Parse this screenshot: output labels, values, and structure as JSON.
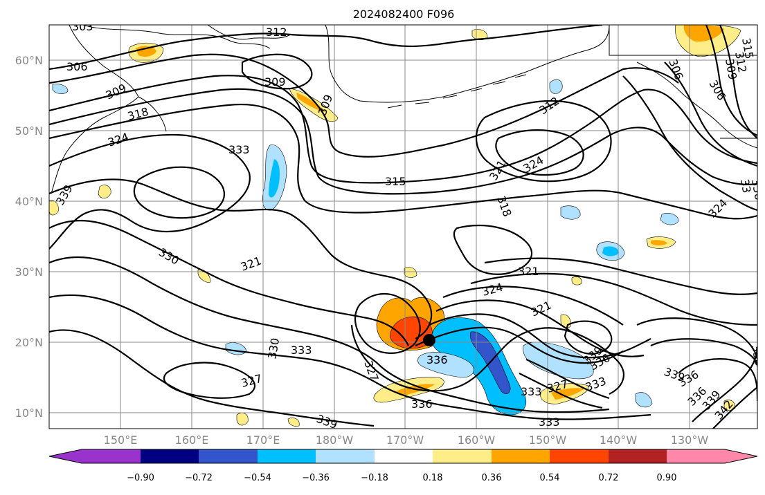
{
  "title": "2024082400 F096",
  "lat_labels": [
    "60°N",
    "50°N",
    "40°N",
    "30°N",
    "20°N",
    "10°N"
  ],
  "lon_labels": [
    "150°E",
    "160°E",
    "170°E",
    "180°W",
    "170°W",
    "160°W",
    "150°W",
    "140°W",
    "130°W"
  ],
  "contour_labels": [
    {
      "id": "c303",
      "text": "303"
    },
    {
      "id": "c312a",
      "text": "312"
    },
    {
      "id": "c306a",
      "text": "306"
    },
    {
      "id": "c309a",
      "text": "309"
    },
    {
      "id": "c309b",
      "text": "309"
    },
    {
      "id": "c309c",
      "text": "309"
    },
    {
      "id": "c318a",
      "text": "318"
    },
    {
      "id": "c324a",
      "text": "324"
    },
    {
      "id": "c333a",
      "text": "333"
    },
    {
      "id": "c312b",
      "text": "312"
    },
    {
      "id": "c321a",
      "text": "321"
    },
    {
      "id": "c324b",
      "text": "324"
    },
    {
      "id": "c315a",
      "text": "315"
    },
    {
      "id": "c318b",
      "text": "318"
    },
    {
      "id": "c339a",
      "text": "339"
    },
    {
      "id": "c330a",
      "text": "330"
    },
    {
      "id": "c321b",
      "text": "321"
    },
    {
      "id": "c321c",
      "text": "321"
    },
    {
      "id": "c324c",
      "text": "324"
    },
    {
      "id": "c321d",
      "text": "321"
    },
    {
      "id": "c330b",
      "text": "330"
    },
    {
      "id": "c333b",
      "text": "333"
    },
    {
      "id": "c336a",
      "text": "336"
    },
    {
      "id": "c327a",
      "text": "327"
    },
    {
      "id": "c327b",
      "text": "327"
    },
    {
      "id": "c336b",
      "text": "336"
    },
    {
      "id": "c339b",
      "text": "339"
    },
    {
      "id": "c333c",
      "text": "333"
    },
    {
      "id": "c327c",
      "text": "327"
    },
    {
      "id": "c339c",
      "text": "339"
    },
    {
      "id": "c336c",
      "text": "336"
    },
    {
      "id": "c333d",
      "text": "333"
    },
    {
      "id": "c339d",
      "text": "339"
    },
    {
      "id": "c336d",
      "text": "336"
    },
    {
      "id": "c336e",
      "text": "336"
    },
    {
      "id": "c339e",
      "text": "339"
    },
    {
      "id": "c342",
      "text": "342"
    },
    {
      "id": "c315b",
      "text": "315"
    },
    {
      "id": "c312c",
      "text": "312"
    },
    {
      "id": "c309d",
      "text": "309"
    },
    {
      "id": "c306b",
      "text": "306"
    },
    {
      "id": "c306c",
      "text": "306"
    },
    {
      "id": "c324d",
      "text": "324"
    },
    {
      "id": "c33e",
      "text": "33"
    },
    {
      "id": "c336f",
      "text": "336"
    },
    {
      "id": "c330c",
      "text": "330"
    },
    {
      "id": "c333e",
      "text": "333"
    }
  ],
  "colorbar": {
    "ticks": [
      "−0.90",
      "−0.72",
      "−0.54",
      "−0.36",
      "−0.18",
      "0.18",
      "0.36",
      "0.54",
      "0.72",
      "0.90"
    ],
    "colors": [
      "#9933cc",
      "#000080",
      "#3355cc",
      "#00bfff",
      "#b0e2ff",
      "#ffffff",
      "#ffee88",
      "#ffa500",
      "#ff4500",
      "#b22222",
      "#ff88aa"
    ]
  },
  "fill_colors": {
    "light_blue": "#b0e2ff",
    "blue": "#00bfff",
    "mid_blue": "#3355cc",
    "yellow": "#ffee88",
    "orange": "#ffa500",
    "red_orange": "#ff4500"
  },
  "marker_color": "#000000"
}
